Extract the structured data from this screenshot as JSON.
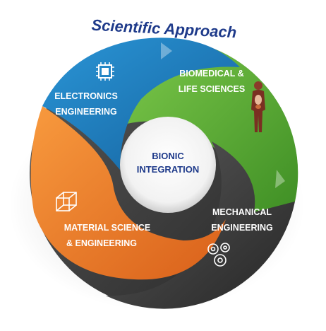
{
  "title": "Scientific Approach",
  "center": {
    "line1": "BIONIC",
    "line2": "INTEGRATION"
  },
  "segments": [
    {
      "key": "electronics",
      "line1": "ELECTRONICS",
      "line2": "ENGINEERING",
      "color": "#1f7fc2",
      "icon": "microchip-icon"
    },
    {
      "key": "biomedical",
      "line1": "BIOMEDICAL &",
      "line2": "LIFE SCIENCES",
      "color": "#5fb23a",
      "icon": "human-anatomy-icon"
    },
    {
      "key": "mechanical",
      "line1": "MECHANICAL",
      "line2": "ENGINEERING",
      "color": "#3f3f3f",
      "icon": "gears-icon"
    },
    {
      "key": "material",
      "line1": "MATERIAL SCIENCE",
      "line2": "& ENGINEERING",
      "color": "#f07a26",
      "icon": "cube-lattice-icon"
    }
  ],
  "colors": {
    "title": "#1e3a8a",
    "center_text": "#1e3a8a",
    "label_text": "#ffffff"
  }
}
